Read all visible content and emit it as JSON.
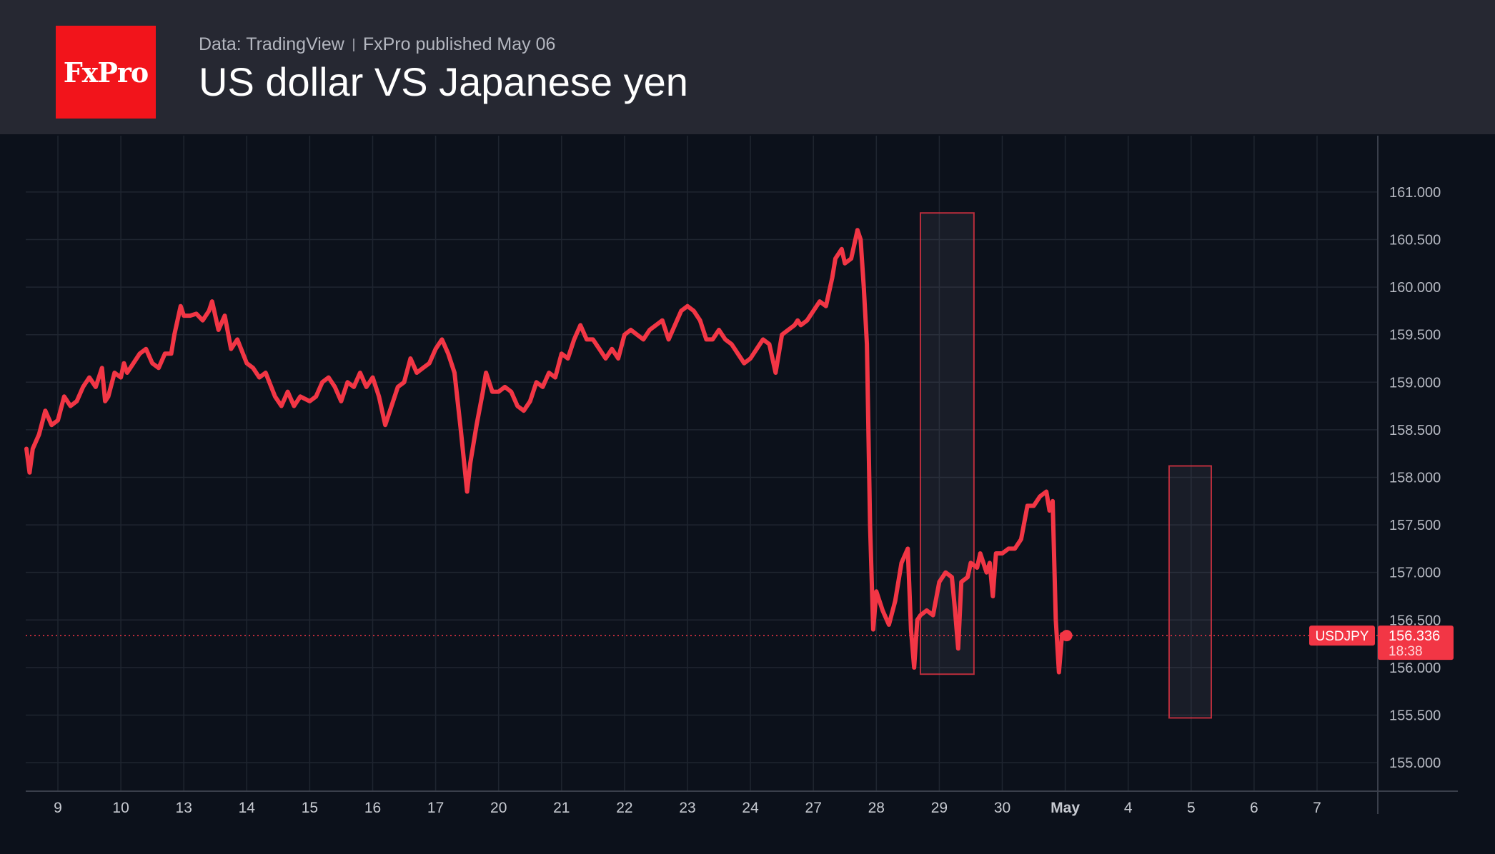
{
  "header": {
    "logo_text": "FxPro",
    "source": "Data: TradingView",
    "published": "FxPro published May 06",
    "title": "US dollar VS Japanese yen"
  },
  "colors": {
    "header_bg": "#262832",
    "chart_bg": "#0c111b",
    "line": "#f23645",
    "logo_red": "#f2141b"
  },
  "chart_data": {
    "type": "line",
    "title": "US dollar VS Japanese yen",
    "ylim": [
      154.7,
      161.6
    ],
    "y_ticks": [
      155.0,
      155.5,
      156.0,
      156.5,
      157.0,
      157.5,
      158.0,
      158.5,
      159.0,
      159.5,
      160.0,
      160.5,
      161.0
    ],
    "y_tick_labels": [
      "155.000",
      "155.500",
      "156.000",
      "156.500",
      "157.000",
      "157.500",
      "158.000",
      "158.500",
      "159.000",
      "159.500",
      "160.000",
      "160.500",
      "161.000"
    ],
    "x_labels": [
      "9",
      "10",
      "13",
      "14",
      "15",
      "16",
      "17",
      "20",
      "21",
      "22",
      "23",
      "24",
      "27",
      "28",
      "29",
      "30",
      "May",
      "4",
      "5",
      "6",
      "7"
    ],
    "x_label_bold": "May",
    "grid": true,
    "series": [
      {
        "name": "USDJPY",
        "values": [
          [
            -0.5,
            158.3
          ],
          [
            -0.45,
            158.05
          ],
          [
            -0.4,
            158.3
          ],
          [
            -0.3,
            158.45
          ],
          [
            -0.2,
            158.7
          ],
          [
            -0.1,
            158.55
          ],
          [
            0,
            158.6
          ],
          [
            0.1,
            158.85
          ],
          [
            0.2,
            158.75
          ],
          [
            0.3,
            158.8
          ],
          [
            0.4,
            158.95
          ],
          [
            0.5,
            159.05
          ],
          [
            0.6,
            158.95
          ],
          [
            0.7,
            159.15
          ],
          [
            0.75,
            158.8
          ],
          [
            0.8,
            158.85
          ],
          [
            0.9,
            159.1
          ],
          [
            1.0,
            159.05
          ],
          [
            1.05,
            159.2
          ],
          [
            1.1,
            159.1
          ],
          [
            1.2,
            159.2
          ],
          [
            1.3,
            159.3
          ],
          [
            1.4,
            159.35
          ],
          [
            1.5,
            159.2
          ],
          [
            1.6,
            159.15
          ],
          [
            1.7,
            159.3
          ],
          [
            1.8,
            159.3
          ],
          [
            1.85,
            159.5
          ],
          [
            1.95,
            159.8
          ],
          [
            2.0,
            159.7
          ],
          [
            2.1,
            159.7
          ],
          [
            2.2,
            159.72
          ],
          [
            2.3,
            159.65
          ],
          [
            2.4,
            159.75
          ],
          [
            2.45,
            159.85
          ],
          [
            2.55,
            159.55
          ],
          [
            2.65,
            159.7
          ],
          [
            2.75,
            159.35
          ],
          [
            2.85,
            159.45
          ],
          [
            3.0,
            159.2
          ],
          [
            3.1,
            159.15
          ],
          [
            3.2,
            159.05
          ],
          [
            3.3,
            159.1
          ],
          [
            3.45,
            158.85
          ],
          [
            3.55,
            158.75
          ],
          [
            3.65,
            158.9
          ],
          [
            3.75,
            158.75
          ],
          [
            3.85,
            158.85
          ],
          [
            4.0,
            158.8
          ],
          [
            4.1,
            158.85
          ],
          [
            4.2,
            159.0
          ],
          [
            4.3,
            159.05
          ],
          [
            4.4,
            158.95
          ],
          [
            4.5,
            158.8
          ],
          [
            4.6,
            159.0
          ],
          [
            4.7,
            158.95
          ],
          [
            4.8,
            159.1
          ],
          [
            4.9,
            158.95
          ],
          [
            5.0,
            159.05
          ],
          [
            5.1,
            158.85
          ],
          [
            5.2,
            158.55
          ],
          [
            5.3,
            158.75
          ],
          [
            5.4,
            158.95
          ],
          [
            5.5,
            159.0
          ],
          [
            5.6,
            159.25
          ],
          [
            5.7,
            159.1
          ],
          [
            5.8,
            159.15
          ],
          [
            5.9,
            159.2
          ],
          [
            6.0,
            159.35
          ],
          [
            6.1,
            159.45
          ],
          [
            6.2,
            159.3
          ],
          [
            6.3,
            159.1
          ],
          [
            6.4,
            158.5
          ],
          [
            6.5,
            157.85
          ],
          [
            6.55,
            158.15
          ],
          [
            6.65,
            158.55
          ],
          [
            6.75,
            158.9
          ],
          [
            6.8,
            159.1
          ],
          [
            6.9,
            158.9
          ],
          [
            7.0,
            158.9
          ],
          [
            7.1,
            158.95
          ],
          [
            7.2,
            158.9
          ],
          [
            7.3,
            158.75
          ],
          [
            7.4,
            158.7
          ],
          [
            7.5,
            158.8
          ],
          [
            7.6,
            159.0
          ],
          [
            7.7,
            158.95
          ],
          [
            7.8,
            159.1
          ],
          [
            7.9,
            159.05
          ],
          [
            8.0,
            159.3
          ],
          [
            8.1,
            159.25
          ],
          [
            8.2,
            159.45
          ],
          [
            8.3,
            159.6
          ],
          [
            8.4,
            159.45
          ],
          [
            8.5,
            159.45
          ],
          [
            8.6,
            159.35
          ],
          [
            8.7,
            159.25
          ],
          [
            8.8,
            159.35
          ],
          [
            8.9,
            159.25
          ],
          [
            9.0,
            159.5
          ],
          [
            9.1,
            159.55
          ],
          [
            9.2,
            159.5
          ],
          [
            9.3,
            159.45
          ],
          [
            9.4,
            159.55
          ],
          [
            9.5,
            159.6
          ],
          [
            9.6,
            159.65
          ],
          [
            9.7,
            159.45
          ],
          [
            9.8,
            159.6
          ],
          [
            9.9,
            159.75
          ],
          [
            10.0,
            159.8
          ],
          [
            10.1,
            159.75
          ],
          [
            10.2,
            159.65
          ],
          [
            10.3,
            159.45
          ],
          [
            10.4,
            159.45
          ],
          [
            10.5,
            159.55
          ],
          [
            10.6,
            159.45
          ],
          [
            10.7,
            159.4
          ],
          [
            10.8,
            159.3
          ],
          [
            10.9,
            159.2
          ],
          [
            11.0,
            159.25
          ],
          [
            11.1,
            159.35
          ],
          [
            11.2,
            159.45
          ],
          [
            11.3,
            159.4
          ],
          [
            11.4,
            159.1
          ],
          [
            11.5,
            159.5
          ],
          [
            11.6,
            159.55
          ],
          [
            11.7,
            159.6
          ],
          [
            11.75,
            159.65
          ],
          [
            11.8,
            159.6
          ],
          [
            11.9,
            159.65
          ],
          [
            12.0,
            159.75
          ],
          [
            12.1,
            159.85
          ],
          [
            12.2,
            159.8
          ],
          [
            12.3,
            160.1
          ],
          [
            12.35,
            160.3
          ],
          [
            12.45,
            160.4
          ],
          [
            12.5,
            160.25
          ],
          [
            12.6,
            160.3
          ],
          [
            12.7,
            160.6
          ],
          [
            12.75,
            160.5
          ],
          [
            12.8,
            160.0
          ],
          [
            12.85,
            159.4
          ],
          [
            12.9,
            157.5
          ],
          [
            12.95,
            156.4
          ],
          [
            13.0,
            156.8
          ],
          [
            13.1,
            156.6
          ],
          [
            13.2,
            156.45
          ],
          [
            13.3,
            156.7
          ],
          [
            13.4,
            157.1
          ],
          [
            13.5,
            157.25
          ],
          [
            13.55,
            156.4
          ],
          [
            13.6,
            156.0
          ],
          [
            13.65,
            156.5
          ],
          [
            13.7,
            156.55
          ],
          [
            13.8,
            156.6
          ],
          [
            13.9,
            156.55
          ],
          [
            14.0,
            156.9
          ],
          [
            14.1,
            157.0
          ],
          [
            14.2,
            156.95
          ],
          [
            14.25,
            156.6
          ],
          [
            14.3,
            156.2
          ],
          [
            14.35,
            156.9
          ],
          [
            14.45,
            156.95
          ],
          [
            14.5,
            157.1
          ],
          [
            14.6,
            157.05
          ],
          [
            14.65,
            157.2
          ],
          [
            14.75,
            157.0
          ],
          [
            14.8,
            157.1
          ],
          [
            14.85,
            156.75
          ],
          [
            14.9,
            157.2
          ],
          [
            15.0,
            157.2
          ],
          [
            15.1,
            157.25
          ],
          [
            15.2,
            157.25
          ],
          [
            15.3,
            157.35
          ],
          [
            15.4,
            157.7
          ],
          [
            15.5,
            157.7
          ],
          [
            15.6,
            157.8
          ],
          [
            15.7,
            157.85
          ],
          [
            15.75,
            157.65
          ],
          [
            15.8,
            157.75
          ],
          [
            15.85,
            156.5
          ],
          [
            15.9,
            155.95
          ],
          [
            15.95,
            156.35
          ],
          [
            16.0,
            156.35
          ]
        ]
      }
    ],
    "annotations": [
      {
        "type": "box",
        "x_start": 13.7,
        "x_end": 14.55,
        "y_top": 160.78,
        "y_bottom": 155.93
      },
      {
        "type": "box",
        "x_start": 17.65,
        "x_end": 18.32,
        "y_top": 158.12,
        "y_bottom": 155.47
      }
    ],
    "last_price": {
      "symbol": "USDJPY",
      "value": "156.336",
      "countdown": "18:38",
      "y": 156.336
    }
  }
}
